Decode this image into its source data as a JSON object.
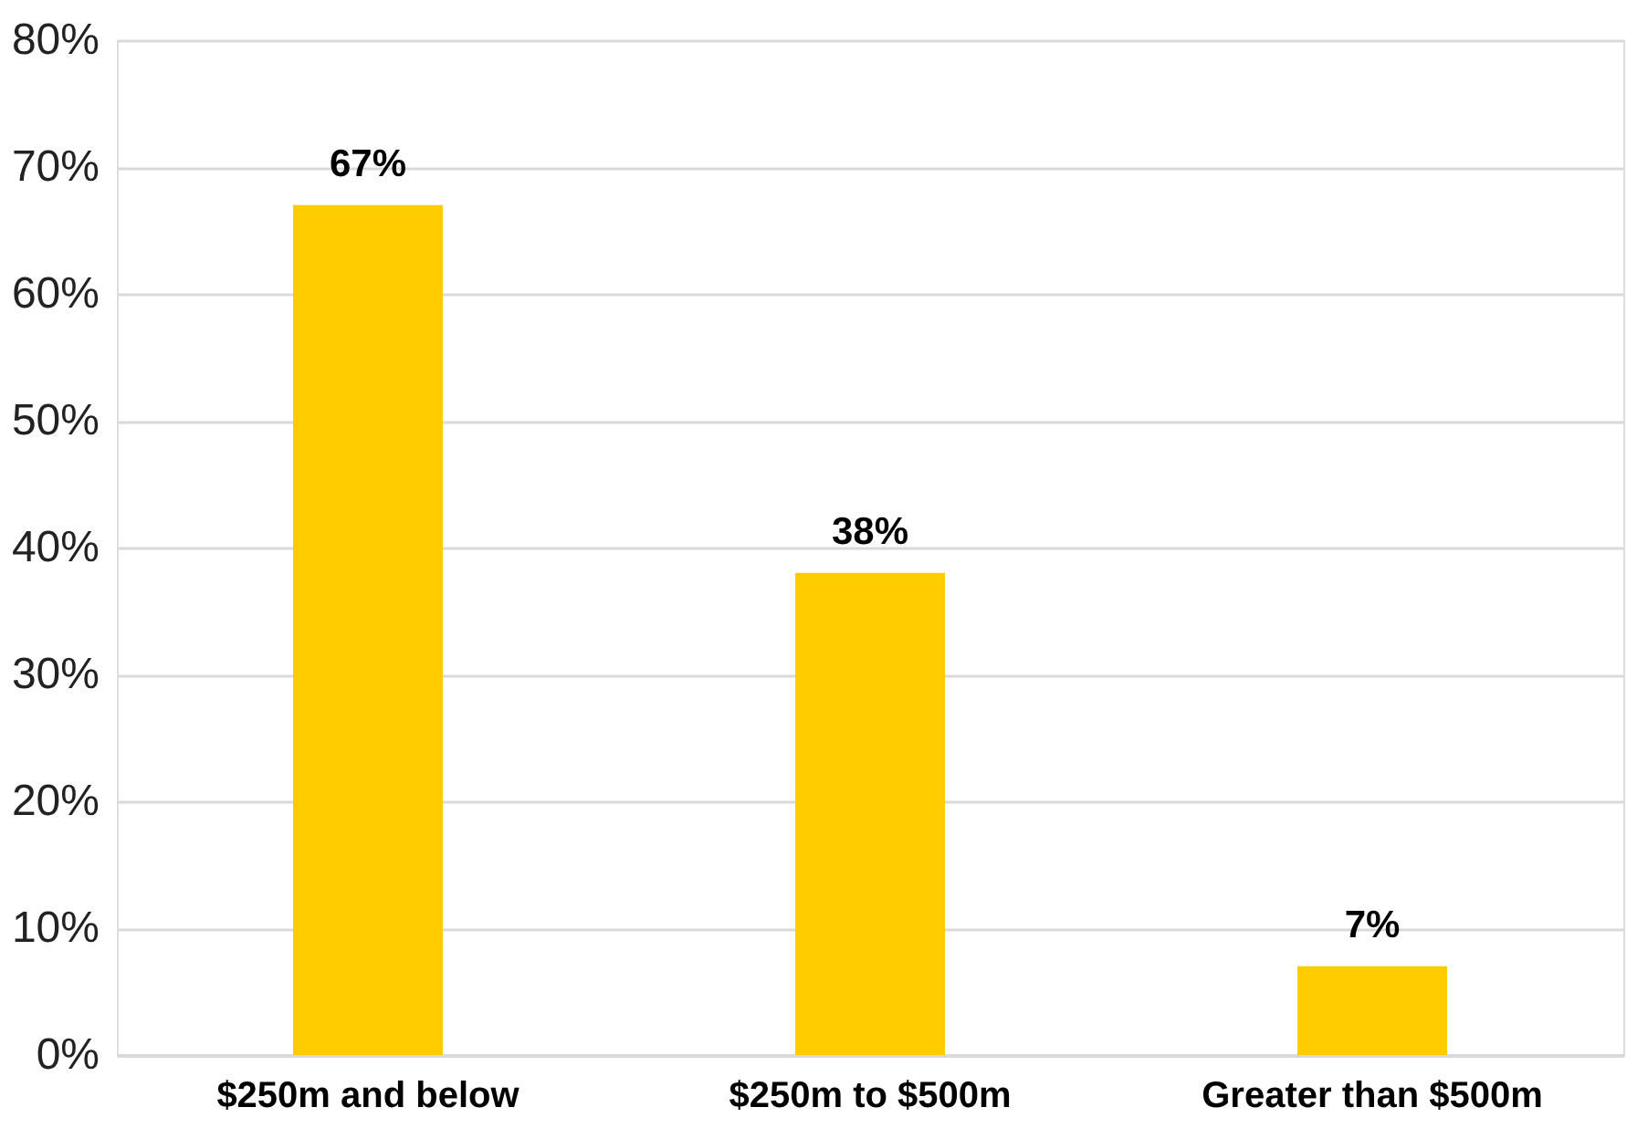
{
  "chart_data": {
    "type": "bar",
    "categories": [
      "$250m and below",
      "$250m to $500m",
      "Greater than $500m"
    ],
    "values": [
      67,
      38,
      7
    ],
    "value_labels": [
      "67%",
      "38%",
      "7%"
    ],
    "color": "#ffcc00",
    "ylim": [
      0,
      80
    ],
    "yticks": [
      {
        "value": 0,
        "label": "0%"
      },
      {
        "value": 10,
        "label": "10%"
      },
      {
        "value": 20,
        "label": "20%"
      },
      {
        "value": 30,
        "label": "30%"
      },
      {
        "value": 40,
        "label": "40%"
      },
      {
        "value": 50,
        "label": "50%"
      },
      {
        "value": 60,
        "label": "60%"
      },
      {
        "value": 70,
        "label": "70%"
      },
      {
        "value": 80,
        "label": "80%"
      }
    ],
    "grid": "y"
  }
}
